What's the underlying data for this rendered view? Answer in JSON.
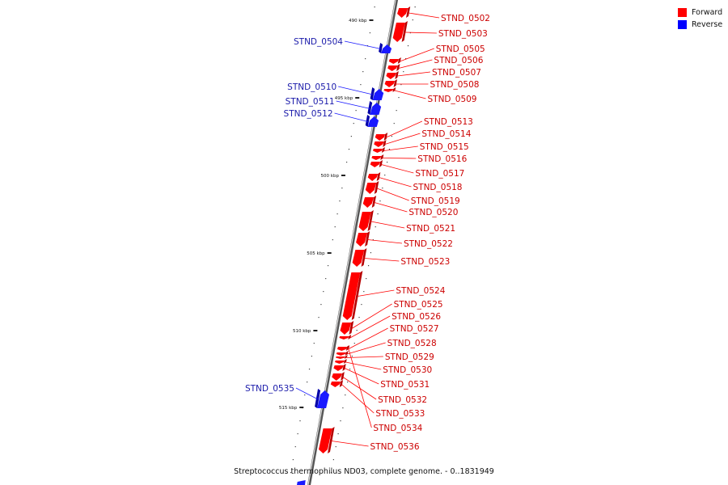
{
  "legend": {
    "items": [
      {
        "label": "Forward",
        "color": "#ff0000"
      },
      {
        "label": "Reverse",
        "color": "#0000ff"
      }
    ]
  },
  "caption": "Streptococcus thermophilus ND03, complete genome. - 0..1831949",
  "ticks": [
    "490 kbp",
    "495 kbp",
    "500 kbp",
    "505 kbp",
    "510 kbp",
    "515 kbp"
  ],
  "genes": [
    {
      "name": "STND_0502",
      "strand": "forward"
    },
    {
      "name": "STND_0503",
      "strand": "forward"
    },
    {
      "name": "STND_0504",
      "strand": "reverse"
    },
    {
      "name": "STND_0505",
      "strand": "forward"
    },
    {
      "name": "STND_0506",
      "strand": "forward"
    },
    {
      "name": "STND_0507",
      "strand": "forward"
    },
    {
      "name": "STND_0508",
      "strand": "forward"
    },
    {
      "name": "STND_0509",
      "strand": "forward"
    },
    {
      "name": "STND_0510",
      "strand": "reverse"
    },
    {
      "name": "STND_0511",
      "strand": "reverse"
    },
    {
      "name": "STND_0512",
      "strand": "reverse"
    },
    {
      "name": "STND_0513",
      "strand": "forward"
    },
    {
      "name": "STND_0514",
      "strand": "forward"
    },
    {
      "name": "STND_0515",
      "strand": "forward"
    },
    {
      "name": "STND_0516",
      "strand": "forward"
    },
    {
      "name": "STND_0517",
      "strand": "forward"
    },
    {
      "name": "STND_0518",
      "strand": "forward"
    },
    {
      "name": "STND_0519",
      "strand": "forward"
    },
    {
      "name": "STND_0520",
      "strand": "forward"
    },
    {
      "name": "STND_0521",
      "strand": "forward"
    },
    {
      "name": "STND_0522",
      "strand": "forward"
    },
    {
      "name": "STND_0523",
      "strand": "forward"
    },
    {
      "name": "STND_0524",
      "strand": "forward"
    },
    {
      "name": "STND_0525",
      "strand": "forward"
    },
    {
      "name": "STND_0526",
      "strand": "forward"
    },
    {
      "name": "STND_0527",
      "strand": "forward"
    },
    {
      "name": "STND_0528",
      "strand": "forward"
    },
    {
      "name": "STND_0529",
      "strand": "forward"
    },
    {
      "name": "STND_0530",
      "strand": "forward"
    },
    {
      "name": "STND_0531",
      "strand": "forward"
    },
    {
      "name": "STND_0532",
      "strand": "forward"
    },
    {
      "name": "STND_0533",
      "strand": "forward"
    },
    {
      "name": "STND_0534",
      "strand": "forward"
    },
    {
      "name": "STND_0535",
      "strand": "reverse"
    },
    {
      "name": "STND_0536",
      "strand": "forward"
    }
  ]
}
